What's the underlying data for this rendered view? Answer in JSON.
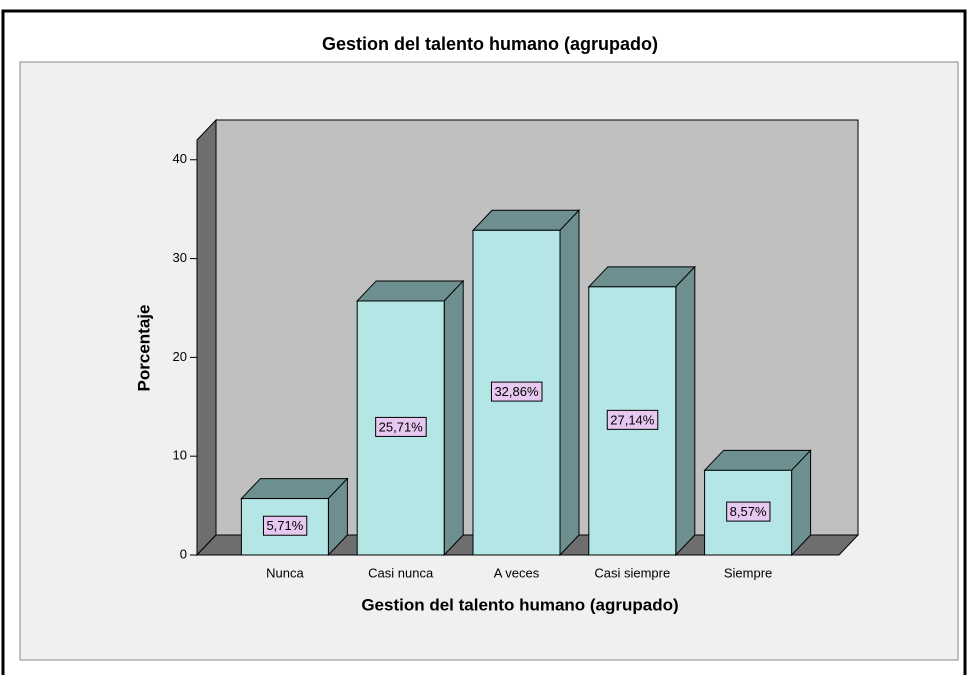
{
  "chart_data": {
    "type": "bar3d",
    "title": "Gestion del talento humano (agrupado)",
    "x_label": "Gestion del talento humano (agrupado)",
    "y_label": "Porcentaje",
    "categories": [
      "Nunca",
      "Casi nunca",
      "A veces",
      "Casi siempre",
      "Siempre"
    ],
    "values": [
      5.71,
      25.71,
      32.86,
      27.14,
      8.57
    ],
    "value_labels": [
      "5,71%",
      "25,71%",
      "32,86%",
      "27,14%",
      "8,57%"
    ],
    "ylim": [
      0,
      42
    ],
    "yticks": [
      0,
      10,
      20,
      30,
      40
    ],
    "color": "#b5e6e6",
    "shade_color": "#6e8f8f"
  }
}
